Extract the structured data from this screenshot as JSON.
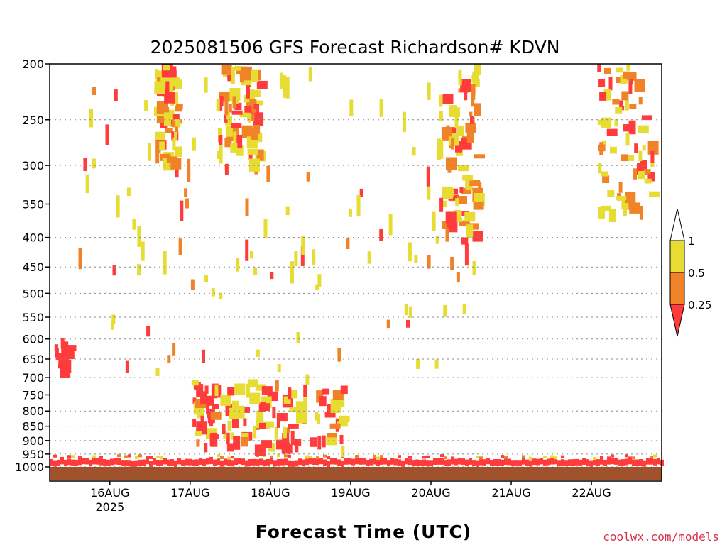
{
  "chart_data": {
    "type": "heatmap",
    "title": "2025081506 GFS Forecast Richardson# KDVN",
    "xlabel": "Forecast Time (UTC)",
    "ylabel": "",
    "y_scale": "pressure (log), inverted",
    "ylim": [
      1000,
      200
    ],
    "y_ticks": [
      200,
      250,
      300,
      350,
      400,
      450,
      500,
      550,
      600,
      650,
      700,
      750,
      800,
      850,
      900,
      950,
      1000
    ],
    "x_range": [
      "2025-08-15 06Z",
      "2025-08-22 21Z"
    ],
    "x_ticks": [
      {
        "label": "16AUG",
        "sublabel": "2025",
        "day": 16
      },
      {
        "label": "17AUG",
        "sublabel": "",
        "day": 17
      },
      {
        "label": "18AUG",
        "sublabel": "",
        "day": 18
      },
      {
        "label": "19AUG",
        "sublabel": "",
        "day": 19
      },
      {
        "label": "20AUG",
        "sublabel": "",
        "day": 20
      },
      {
        "label": "21AUG",
        "sublabel": "",
        "day": 21
      },
      {
        "label": "22AUG",
        "sublabel": "",
        "day": 22
      }
    ],
    "grid": "horizontal dotted at pressure levels",
    "legend": {
      "placement": "right",
      "bins": [
        {
          "range": "< 0.25",
          "color": "#ff3b3b"
        },
        {
          "range": "0.25 - 0.5",
          "color": "#f08228"
        },
        {
          "range": "0.5 - 1",
          "color": "#e6dc32"
        },
        {
          "range": "> 1",
          "color": "#ffffff"
        }
      ],
      "labels": [
        "1",
        "0.5",
        "0.25"
      ]
    },
    "ground_color": "#a0522d",
    "regions": [
      {
        "t": 16.55,
        "dt": 0.28,
        "p1": 200,
        "p2": 300,
        "class": "mixed-upper"
      },
      {
        "t": 17.3,
        "dt": 0.55,
        "p1": 200,
        "p2": 300,
        "class": "mixed-upper"
      },
      {
        "t": 20.1,
        "dt": 0.45,
        "p1": 200,
        "p2": 400,
        "class": "mixed-upper"
      },
      {
        "t": 22.05,
        "dt": 0.7,
        "p1": 200,
        "p2": 360,
        "class": "mixed-upper"
      },
      {
        "t": 17.0,
        "dt": 1.9,
        "p1": 700,
        "p2": 920,
        "class": "mixed-lower"
      },
      {
        "t": 15.3,
        "dt": 0.15,
        "p1": 590,
        "p2": 680,
        "class": "red"
      }
    ]
  },
  "credit": "coolwx.com/models"
}
